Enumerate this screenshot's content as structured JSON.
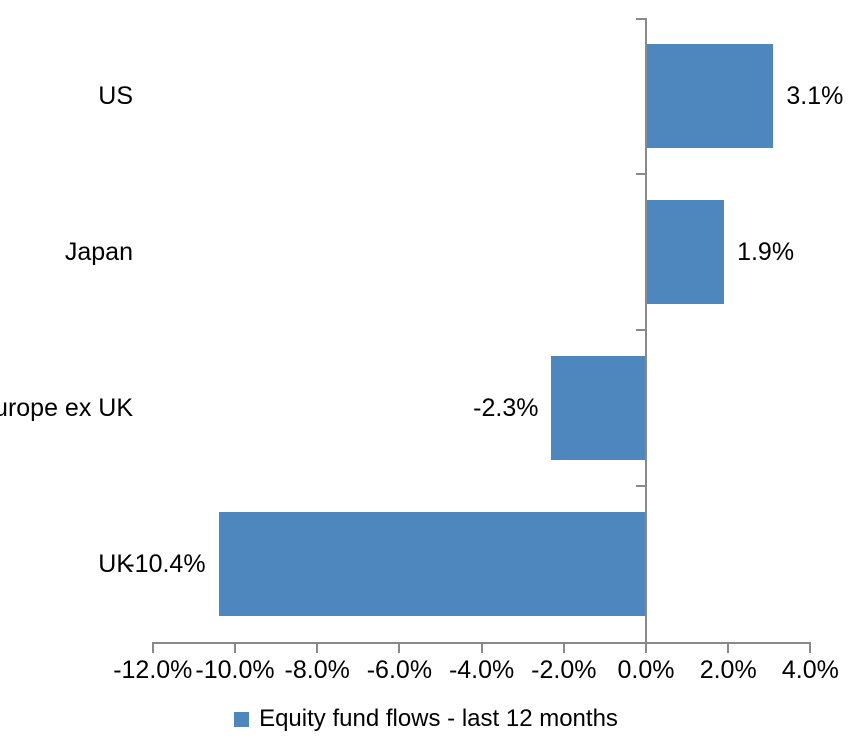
{
  "chart_data": {
    "type": "bar",
    "orientation": "horizontal",
    "title": "",
    "categories": [
      "US",
      "Japan",
      "Europe ex UK",
      "UK"
    ],
    "values": [
      3.1,
      1.9,
      -2.3,
      -10.4
    ],
    "value_labels": [
      "3.1%",
      "1.9%",
      "-2.3%",
      "-10.4%"
    ],
    "series": [
      {
        "name": "Equity fund flows - last 12 months",
        "values": [
          3.1,
          1.9,
          -2.3,
          -10.4
        ]
      }
    ],
    "xlabel": "",
    "ylabel": "",
    "x_axis": {
      "min": -12.0,
      "max": 4.0,
      "step": 2.0,
      "tick_labels": [
        "-12.0%",
        "-10.0%",
        "-8.0%",
        "-6.0%",
        "-4.0%",
        "-2.0%",
        "0.0%",
        "2.0%",
        "4.0%"
      ]
    },
    "grid": false,
    "legend_position": "bottom",
    "colors": {
      "bar": "#4D87BE",
      "axis_line": "#898989",
      "text": "#000000",
      "background": "#FFFFFF"
    }
  },
  "legend": {
    "label": "Equity fund flows - last 12 months"
  }
}
